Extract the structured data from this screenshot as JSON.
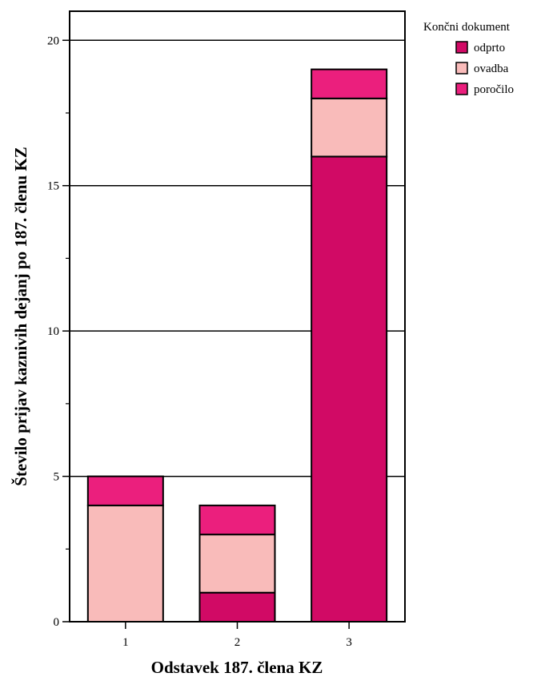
{
  "chart_data": {
    "type": "bar",
    "stacked": true,
    "categories": [
      "1",
      "2",
      "3"
    ],
    "series": [
      {
        "name": "odprto",
        "color": "#d10a65",
        "values": [
          0,
          1,
          16
        ]
      },
      {
        "name": "ovadba",
        "color": "#f9bbba",
        "values": [
          4,
          2,
          2
        ]
      },
      {
        "name": "poročilo",
        "color": "#eb1f7d",
        "values": [
          1,
          1,
          1
        ]
      }
    ],
    "xlabel": "Odstavek 187. člena KZ",
    "ylabel": "Število prijav kaznivih dejanj po 187. členu KZ",
    "ylim": [
      0,
      21
    ],
    "yticks": [
      0,
      5,
      10,
      15,
      20
    ],
    "grid": true,
    "legend": {
      "title": "Končni dokument",
      "position": "top-right"
    }
  }
}
